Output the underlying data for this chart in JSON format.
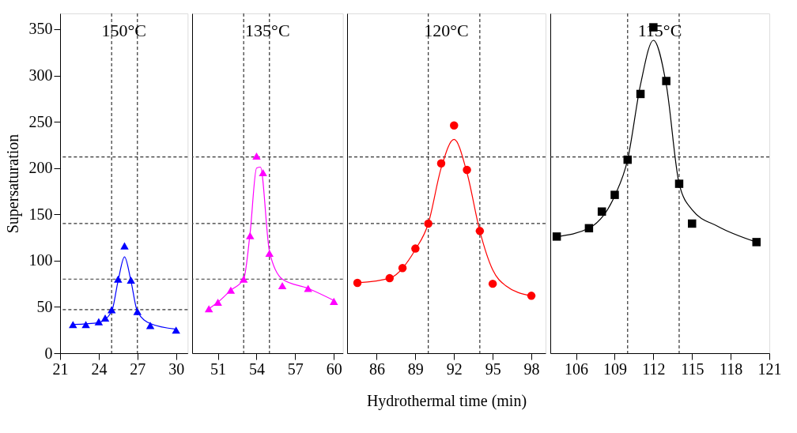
{
  "chart_data": [
    {
      "type": "scatter",
      "ylabel": "Supersaturation",
      "annotations": [
        "150°C"
      ],
      "xlim": [
        21,
        30.9
      ],
      "xticks": [
        21,
        24,
        27,
        30
      ],
      "ylim": [
        0,
        367
      ],
      "yticks": [
        0,
        50,
        100,
        150,
        200,
        250,
        300,
        350
      ],
      "grid": false,
      "line_style": "solid",
      "series": [
        {
          "type": "line",
          "color": "#0000ff",
          "x": [
            22,
            24,
            25,
            25.5,
            26,
            26.5,
            27,
            28,
            30
          ],
          "values": [
            31,
            33,
            45,
            78,
            104,
            78,
            45,
            32,
            26
          ]
        },
        {
          "marker": "triangle",
          "color": "#0000ff",
          "x": [
            22,
            23,
            24,
            24.5,
            25,
            25.5,
            26,
            26.5,
            27,
            28,
            30
          ],
          "values": [
            31,
            31,
            34,
            38,
            47,
            80,
            116,
            79,
            45,
            30,
            25
          ]
        }
      ],
      "ref_lines": [
        {
          "axis": "y",
          "value": 47,
          "line_style": "dashed",
          "color": "#333333"
        },
        {
          "axis": "y",
          "value": 80,
          "line_style": "dashed",
          "color": "#333333"
        },
        {
          "axis": "y",
          "value": 140,
          "line_style": "dashed",
          "color": "#333333"
        },
        {
          "axis": "y",
          "value": 212,
          "line_style": "dashed",
          "color": "#333333"
        },
        {
          "axis": "x",
          "value": 25,
          "line_style": "dashed",
          "color": "#333333"
        },
        {
          "axis": "x",
          "value": 27,
          "line_style": "dashed",
          "color": "#333333"
        }
      ]
    },
    {
      "type": "scatter",
      "annotations": [
        "135°C"
      ],
      "xlim": [
        49,
        60.7
      ],
      "xticks": [
        51,
        54,
        57,
        60
      ],
      "ylim": [
        0,
        367
      ],
      "tick_labels": "x",
      "grid": false,
      "line_style": "solid",
      "series": [
        {
          "type": "line",
          "color": "#ff00ff",
          "x": [
            50.3,
            51,
            52,
            53,
            53.5,
            54,
            54.3,
            55,
            56,
            58,
            60
          ],
          "values": [
            48,
            55,
            68,
            80,
            130,
            200,
            201,
            110,
            80,
            70,
            57
          ]
        },
        {
          "marker": "triangle",
          "color": "#ff00ff",
          "x": [
            50.3,
            51,
            52,
            53,
            53.5,
            54,
            54.5,
            55,
            56,
            58,
            60
          ],
          "values": [
            48,
            55,
            68,
            80,
            127,
            213,
            195,
            108,
            73,
            70,
            56
          ]
        }
      ],
      "ref_lines": [
        {
          "axis": "y",
          "value": 80,
          "line_style": "dashed",
          "color": "#333333"
        },
        {
          "axis": "y",
          "value": 140,
          "line_style": "dashed",
          "color": "#333333"
        },
        {
          "axis": "y",
          "value": 212,
          "line_style": "dashed",
          "color": "#333333"
        },
        {
          "axis": "x",
          "value": 53,
          "line_style": "dashed",
          "color": "#333333"
        },
        {
          "axis": "x",
          "value": 55,
          "line_style": "dashed",
          "color": "#333333"
        }
      ]
    },
    {
      "type": "scatter",
      "xlabel": "Hydrothermal time (min)",
      "annotations": [
        "120°C"
      ],
      "xlim": [
        83.7,
        99.1
      ],
      "xticks": [
        86,
        89,
        92,
        95,
        98
      ],
      "ylim": [
        0,
        367
      ],
      "tick_labels": "x",
      "grid": false,
      "line_style": "solid",
      "series": [
        {
          "type": "line",
          "color": "#ff0000",
          "x": [
            84.5,
            87,
            89,
            90,
            91,
            92,
            93,
            94,
            95,
            96,
            98
          ],
          "values": [
            76,
            81,
            112,
            140,
            200,
            231,
            195,
            132,
            90,
            73,
            62
          ]
        },
        {
          "marker": "circle",
          "color": "#ff0000",
          "x": [
            84.5,
            87,
            88,
            89,
            90,
            91,
            92,
            93,
            94,
            95,
            98
          ],
          "values": [
            76,
            81,
            92,
            113,
            140,
            205,
            246,
            198,
            132,
            75,
            62
          ]
        }
      ],
      "ref_lines": [
        {
          "axis": "y",
          "value": 140,
          "line_style": "dashed",
          "color": "#333333"
        },
        {
          "axis": "y",
          "value": 212,
          "line_style": "dashed",
          "color": "#333333"
        },
        {
          "axis": "x",
          "value": 90,
          "line_style": "dashed",
          "color": "#333333"
        },
        {
          "axis": "x",
          "value": 94,
          "line_style": "dashed",
          "color": "#333333"
        }
      ]
    },
    {
      "type": "scatter",
      "annotations": [
        "115°C"
      ],
      "xlim": [
        104,
        121
      ],
      "xticks": [
        106,
        109,
        112,
        115,
        118,
        121
      ],
      "ylim": [
        0,
        367
      ],
      "tick_labels": "x",
      "grid": false,
      "line_style": "solid",
      "series": [
        {
          "type": "line",
          "color": "#000000",
          "x": [
            104.5,
            107,
            109,
            110,
            111,
            112,
            113,
            114,
            115,
            117,
            120
          ],
          "values": [
            126,
            135,
            170,
            209,
            290,
            338,
            290,
            183,
            155,
            137,
            120
          ]
        },
        {
          "marker": "square",
          "color": "#000000",
          "x": [
            104.5,
            107,
            108,
            109,
            110,
            111,
            112,
            113,
            114,
            115,
            120
          ],
          "values": [
            126,
            135,
            153,
            171,
            209,
            280,
            352,
            294,
            183,
            140,
            120
          ]
        }
      ],
      "ref_lines": [
        {
          "axis": "y",
          "value": 212,
          "line_style": "dashed",
          "color": "#333333"
        },
        {
          "axis": "x",
          "value": 110,
          "line_style": "dashed",
          "color": "#333333"
        },
        {
          "axis": "x",
          "value": 114,
          "line_style": "dashed",
          "color": "#333333"
        }
      ]
    }
  ]
}
